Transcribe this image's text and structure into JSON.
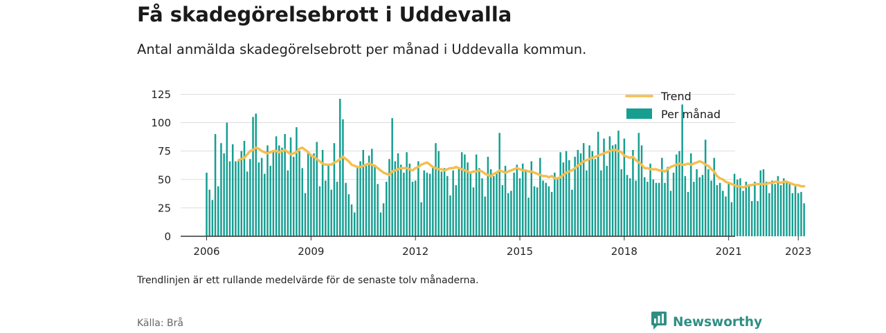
{
  "title": "Få skadegörelsebrott i Uddevalla",
  "subtitle": "Antal anmälda skadegörelsebrott per månad i Uddevalla kommun.",
  "note": "Trendlinjen är ett rullande medelvärde för de senaste tolv månaderna.",
  "source": "Källa: Brå",
  "brand": "Newsworthy",
  "colors": {
    "bars": "#169e91",
    "trend": "#f5be4f",
    "axis": "#333333",
    "grid": "#dddddd",
    "brand": "#2f8f83"
  },
  "chart_data": {
    "type": "bar",
    "ylim": [
      0,
      135
    ],
    "yticks": [
      0,
      25,
      50,
      75,
      100,
      125
    ],
    "xticks": [
      "2006",
      "2009",
      "2012",
      "2015",
      "2018",
      "2021",
      "2023"
    ],
    "x_start": "2006-01",
    "x_end": "2023-03",
    "grid": true,
    "legend_position": "top-right",
    "series": [
      {
        "name": "Per månad",
        "type": "bar",
        "values": [
          56,
          41,
          32,
          90,
          44,
          82,
          73,
          100,
          66,
          81,
          66,
          67,
          75,
          84,
          57,
          68,
          105,
          108,
          65,
          69,
          55,
          80,
          62,
          74,
          88,
          80,
          78,
          90,
          58,
          87,
          70,
          96,
          75,
          60,
          38,
          74,
          72,
          73,
          83,
          44,
          76,
          49,
          63,
          41,
          82,
          48,
          121,
          103,
          47,
          37,
          28,
          21,
          61,
          66,
          76,
          62,
          71,
          77,
          63,
          46,
          21,
          29,
          48,
          68,
          104,
          66,
          73,
          63,
          56,
          74,
          64,
          48,
          49,
          66,
          30,
          58,
          56,
          55,
          61,
          82,
          75,
          57,
          60,
          53,
          36,
          58,
          45,
          60,
          74,
          72,
          65,
          56,
          43,
          72,
          60,
          51,
          35,
          70,
          59,
          53,
          57,
          91,
          45,
          62,
          38,
          40,
          56,
          63,
          51,
          64,
          59,
          34,
          66,
          44,
          43,
          69,
          49,
          47,
          44,
          39,
          56,
          52,
          74,
          65,
          75,
          67,
          41,
          70,
          76,
          73,
          82,
          58,
          80,
          75,
          68,
          92,
          58,
          86,
          62,
          88,
          80,
          81,
          93,
          59,
          86,
          54,
          51,
          76,
          49,
          91,
          80,
          52,
          48,
          64,
          50,
          47,
          47,
          69,
          47,
          61,
          40,
          56,
          72,
          75,
          116,
          53,
          39,
          73,
          48,
          59,
          52,
          54,
          85,
          59,
          49,
          69,
          45,
          47,
          40,
          35,
          48,
          30,
          55,
          50,
          51,
          40,
          48,
          44,
          31,
          48,
          31,
          58,
          59,
          48,
          38,
          49,
          46,
          53,
          45,
          51,
          49,
          47,
          38,
          44,
          38,
          39,
          29
        ]
      },
      {
        "name": "Trend",
        "type": "line",
        "values": [
          null,
          null,
          null,
          null,
          null,
          null,
          null,
          null,
          null,
          null,
          null,
          67,
          68,
          69,
          72,
          75,
          76,
          78,
          77,
          75,
          74,
          73,
          74,
          75,
          75,
          74,
          75,
          76,
          74,
          72,
          73,
          74,
          77,
          78,
          76,
          74,
          71,
          70,
          68,
          66,
          64,
          63,
          63,
          63,
          65,
          66,
          68,
          70,
          68,
          66,
          63,
          62,
          61,
          61,
          62,
          63,
          64,
          63,
          62,
          60,
          58,
          56,
          55,
          54,
          57,
          58,
          59,
          60,
          60,
          60,
          59,
          58,
          60,
          61,
          63,
          64,
          65,
          63,
          61,
          60,
          59,
          59,
          58,
          59,
          60,
          60,
          61,
          60,
          59,
          58,
          57,
          56,
          57,
          57,
          58,
          57,
          55,
          54,
          53,
          55,
          56,
          58,
          57,
          56,
          57,
          58,
          59,
          60,
          59,
          58,
          58,
          57,
          57,
          56,
          55,
          54,
          53,
          53,
          52,
          53,
          51,
          51,
          52,
          54,
          56,
          57,
          58,
          60,
          62,
          64,
          66,
          67,
          68,
          69,
          70,
          71,
          72,
          73,
          74,
          75,
          76,
          76,
          75,
          74,
          71,
          70,
          69,
          70,
          67,
          65,
          63,
          60,
          60,
          59,
          59,
          59,
          58,
          58,
          57,
          59,
          61,
          62,
          63,
          64,
          63,
          63,
          64,
          63,
          64,
          65,
          66,
          65,
          63,
          62,
          59,
          57,
          53,
          51,
          50,
          48,
          47,
          46,
          45,
          44,
          44,
          43,
          44,
          45,
          45,
          46,
          46,
          46,
          46,
          46,
          47,
          47,
          48,
          48,
          47,
          48,
          48,
          47,
          46,
          45,
          45,
          44,
          44
        ]
      }
    ]
  }
}
